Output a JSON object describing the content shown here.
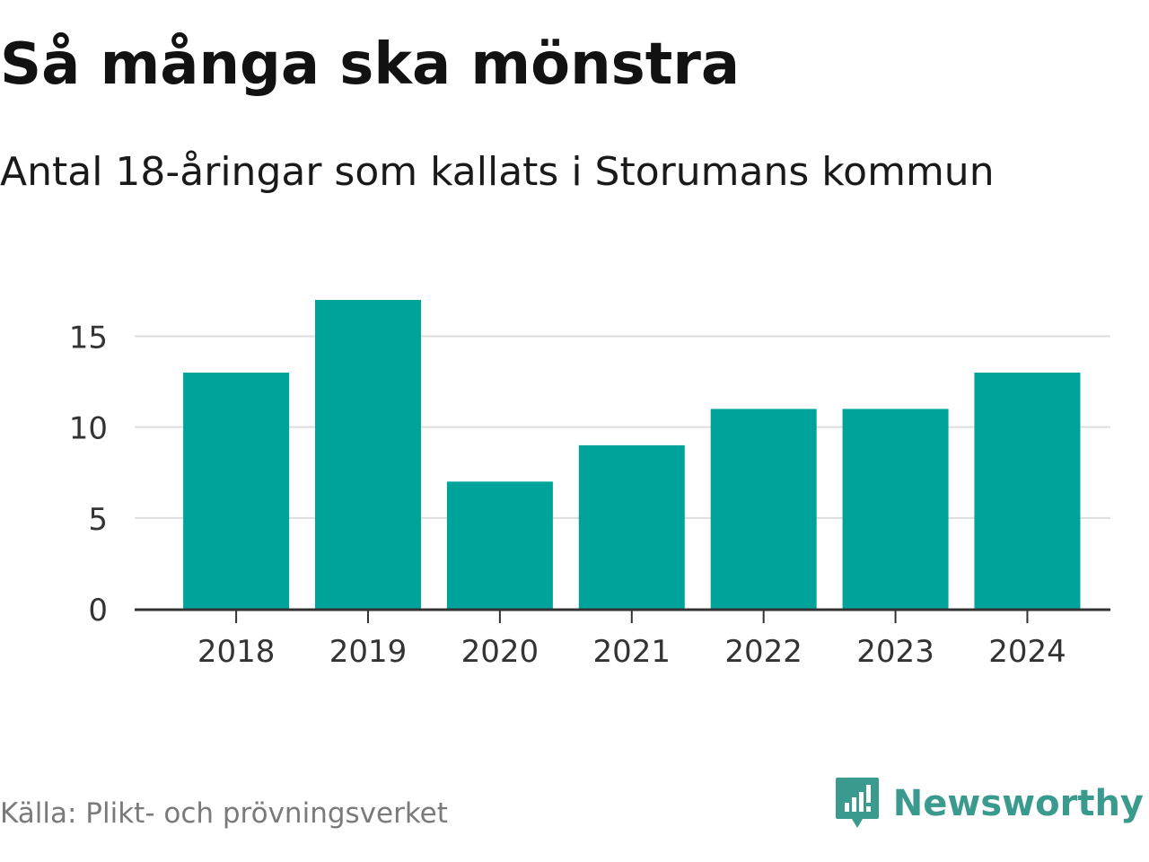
{
  "chart_data": {
    "type": "bar",
    "title": "Så många ska mönstra",
    "subtitle": "Antal 18-åringar som kallats i Storumans kommun",
    "categories": [
      "2018",
      "2019",
      "2020",
      "2021",
      "2022",
      "2023",
      "2024"
    ],
    "values": [
      13,
      17,
      7,
      9,
      11,
      11,
      13
    ],
    "ylim": [
      0,
      17
    ],
    "yticks": [
      0,
      5,
      10,
      15
    ],
    "xlabel": "",
    "ylabel": "",
    "grid": true,
    "bar_color": "#00a39a"
  },
  "footer": {
    "source": "Källa: Plikt- och prövningsverket",
    "brand": "Newsworthy",
    "brand_icon": "newsworthy-logo-icon",
    "brand_color": "#3a9a8e"
  }
}
